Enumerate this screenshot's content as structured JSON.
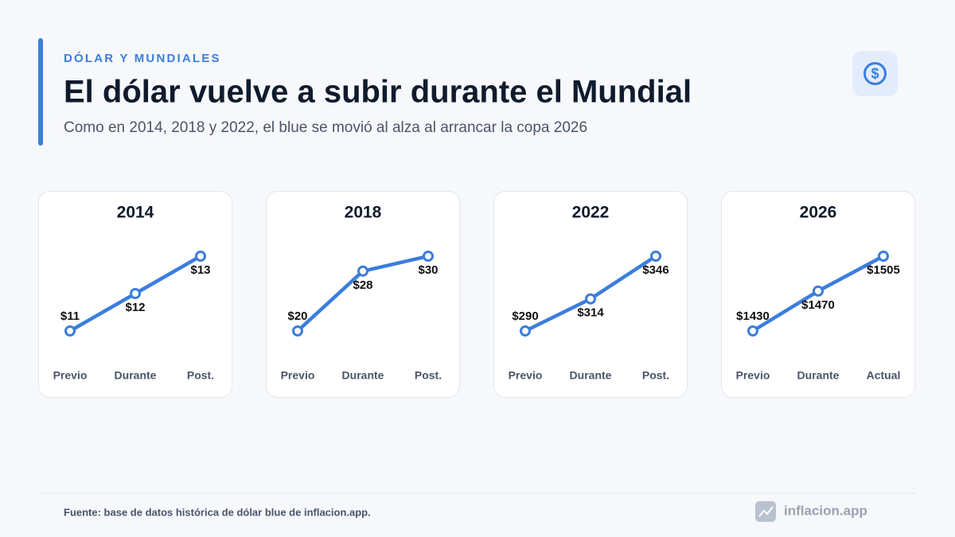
{
  "header": {
    "kicker": "DÓLAR Y MUNDIALES",
    "title": "El dólar vuelve a subir durante el Mundial",
    "subtitle": "Como en 2014, 2018 y 2022, el blue se movió al alza al arrancar la copa 2026"
  },
  "footer": {
    "source": "Fuente: base de datos histórica de dólar blue de inflacion.app.",
    "brand": "inflacion.app"
  },
  "chart_data": [
    {
      "type": "line",
      "title": "2014",
      "categories": [
        "Previo",
        "Durante",
        "Post."
      ],
      "series": [
        {
          "color": "#3b7ddd",
          "values": [
            11,
            12,
            13
          ],
          "value_labels": [
            "$11",
            "$12",
            "$13"
          ]
        }
      ]
    },
    {
      "type": "line",
      "title": "2018",
      "categories": [
        "Previo",
        "Durante",
        "Post."
      ],
      "series": [
        {
          "color": "#3b7ddd",
          "values": [
            20,
            28,
            30
          ],
          "value_labels": [
            "$20",
            "$28",
            "$30"
          ]
        }
      ]
    },
    {
      "type": "line",
      "title": "2022",
      "categories": [
        "Previo",
        "Durante",
        "Post."
      ],
      "series": [
        {
          "color": "#3b7ddd",
          "values": [
            290,
            314,
            346
          ],
          "value_labels": [
            "$290",
            "$314",
            "$346"
          ]
        }
      ]
    },
    {
      "type": "line",
      "title": "2026",
      "categories": [
        "Previo",
        "Durante",
        "Actual"
      ],
      "series": [
        {
          "color": "#3b7ddd",
          "values": [
            1430,
            1470,
            1505
          ],
          "value_labels": [
            "$1430",
            "$1470",
            "$1505"
          ]
        }
      ]
    }
  ]
}
